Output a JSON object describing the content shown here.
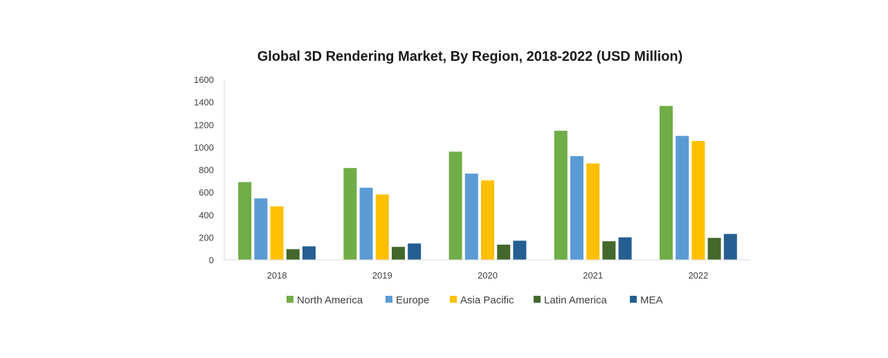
{
  "chart_data": {
    "type": "bar",
    "title": "Global 3D Rendering Market, By Region, 2018-2022  (USD Million)",
    "xlabel": "",
    "ylabel": "",
    "categories": [
      "2018",
      "2019",
      "2020",
      "2021",
      "2022"
    ],
    "ylim": [
      0,
      1600
    ],
    "yticks": [
      0,
      200,
      400,
      600,
      800,
      1000,
      1200,
      1400,
      1600
    ],
    "grid": false,
    "legend": "bottom",
    "series": [
      {
        "name": "North America",
        "color": "#70ad47",
        "values": [
          690,
          815,
          960,
          1145,
          1365
        ]
      },
      {
        "name": "Europe",
        "color": "#5b9bd5",
        "values": [
          545,
          640,
          765,
          920,
          1100
        ]
      },
      {
        "name": "Asia Pacific",
        "color": "#ffc000",
        "values": [
          475,
          580,
          705,
          855,
          1055
        ]
      },
      {
        "name": "Latin America",
        "color": "#43682b",
        "values": [
          95,
          115,
          135,
          165,
          195
        ]
      },
      {
        "name": "MEA",
        "color": "#255e91",
        "values": [
          120,
          145,
          170,
          200,
          230
        ]
      }
    ]
  }
}
